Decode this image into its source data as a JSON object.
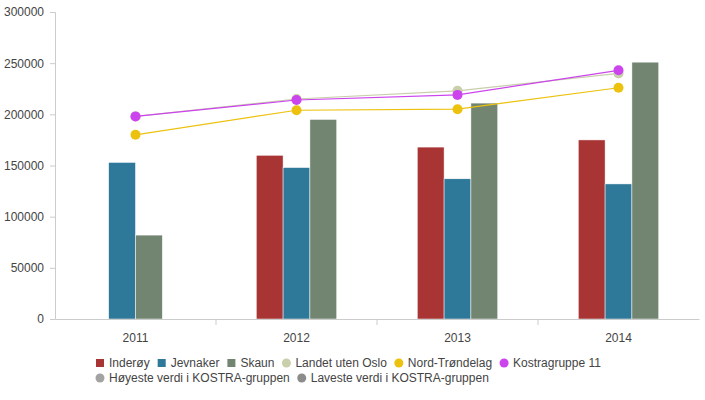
{
  "chart_data": {
    "type": "bar",
    "categories": [
      "2011",
      "2012",
      "2013",
      "2014"
    ],
    "ylim": [
      0,
      300000
    ],
    "yticks": [
      0,
      50000,
      100000,
      150000,
      200000,
      250000,
      300000
    ],
    "grid": false,
    "legend": "bottom",
    "series": [
      {
        "name": "Inderøy",
        "type": "bar",
        "color": "#a83434",
        "values": [
          null,
          160000,
          168000,
          175000
        ]
      },
      {
        "name": "Jevnaker",
        "type": "bar",
        "color": "#2e7899",
        "values": [
          153000,
          148000,
          137000,
          132000
        ]
      },
      {
        "name": "Skaun",
        "type": "bar",
        "color": "#718571",
        "values": [
          82000,
          195000,
          211000,
          251000
        ]
      },
      {
        "name": "Landet uten Oslo",
        "type": "line",
        "marker": "circle",
        "color": "#c9cfaa",
        "values": [
          198000,
          215000,
          223000,
          240000
        ]
      },
      {
        "name": "Nord-Trøndelag",
        "type": "line",
        "marker": "circle",
        "color": "#ecc20f",
        "values": [
          180000,
          204000,
          205000,
          226000
        ]
      },
      {
        "name": "Kostragruppe 11",
        "type": "line",
        "marker": "circle",
        "color": "#cc44ee",
        "values": [
          198000,
          214000,
          219000,
          243000
        ]
      },
      {
        "name": "Høyeste verdi i KOSTRA-gruppen",
        "type": "line",
        "marker": "circle",
        "color": "#a3a3a3",
        "values": [
          null,
          null,
          null,
          null
        ]
      },
      {
        "name": "Laveste verdi i KOSTRA-gruppen",
        "type": "line",
        "marker": "circle",
        "color": "#8c8c8c",
        "values": [
          null,
          null,
          null,
          null
        ]
      }
    ]
  }
}
